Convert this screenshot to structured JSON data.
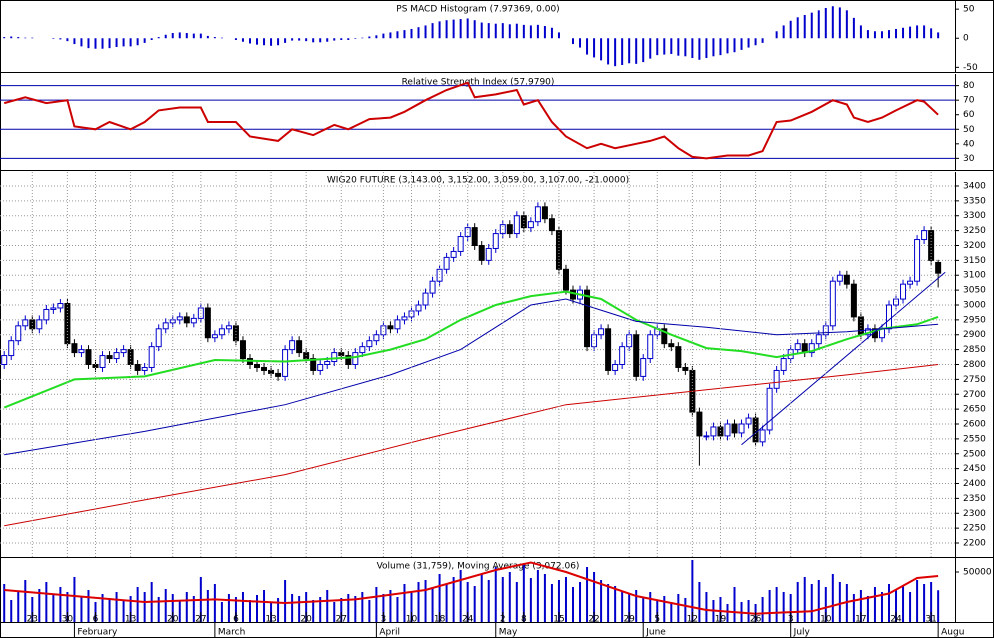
{
  "chart_data": [
    {
      "type": "bar",
      "title": "PS MACD Histogram (7.97369, 0.00)",
      "color": "#0000cc",
      "ylim": [
        -58,
        64
      ],
      "yticks": [
        -50,
        0,
        50
      ],
      "values": [
        2,
        3,
        2,
        1,
        1,
        0,
        0,
        -1,
        -2,
        -5,
        -10,
        -14,
        -17,
        -18,
        -18,
        -17,
        -15,
        -14,
        -14,
        -12,
        -8,
        -3,
        2,
        6,
        9,
        10,
        9,
        8,
        8,
        4,
        2,
        1,
        0,
        -3,
        -6,
        -9,
        -11,
        -12,
        -13,
        -12,
        -8,
        -4,
        -4,
        -5,
        -7,
        -7,
        -6,
        -4,
        -3,
        -3,
        -1,
        1,
        3,
        5,
        8,
        10,
        12,
        14,
        16,
        19,
        22,
        26,
        29,
        31,
        32,
        33,
        34,
        31,
        27,
        26,
        25,
        26,
        24,
        25,
        23,
        22,
        23,
        21,
        18,
        10,
        0,
        -10,
        -16,
        -28,
        -33,
        -38,
        -45,
        -48,
        -46,
        -43,
        -44,
        -41,
        -35,
        -29,
        -28,
        -27,
        -30,
        -31,
        -34,
        -37,
        -34,
        -31,
        -29,
        -26,
        -24,
        -20,
        -16,
        -12,
        -8,
        0,
        12,
        22,
        30,
        36,
        40,
        44,
        48,
        52,
        55,
        53,
        48,
        35,
        22,
        14,
        12,
        12,
        14,
        16,
        18,
        20,
        22,
        22,
        17,
        10
      ]
    },
    {
      "type": "line",
      "title": "Relative Strength Index (57.9790)",
      "color": "#cc0000",
      "level_color": "#0000aa",
      "levels": [
        30,
        50,
        70,
        80
      ],
      "ylim": [
        22,
        88
      ],
      "yticks": [
        30,
        40,
        50,
        60,
        70,
        80
      ],
      "x": [
        0,
        3,
        6,
        9,
        10,
        13,
        15,
        18,
        20,
        22,
        25,
        28,
        29,
        33,
        35,
        39,
        41,
        44,
        47,
        49,
        52,
        55,
        57,
        60,
        63,
        66,
        67,
        70,
        73,
        74,
        76,
        78,
        80,
        83,
        85,
        87,
        90,
        92,
        94,
        96,
        98,
        100,
        103,
        106,
        108,
        110,
        112,
        115,
        118,
        120,
        121,
        123,
        125,
        127,
        130,
        131,
        133
      ],
      "values": [
        68,
        72,
        68,
        70,
        52,
        50,
        55,
        50,
        55,
        63,
        65,
        65,
        55,
        55,
        45,
        42,
        50,
        46,
        53,
        50,
        57,
        58,
        62,
        70,
        77,
        82,
        72,
        74,
        77,
        67,
        70,
        55,
        45,
        37,
        40,
        37,
        40,
        42,
        45,
        37,
        31,
        30,
        32,
        32,
        35,
        55,
        56,
        62,
        70,
        67,
        58,
        55,
        58,
        63,
        70,
        69,
        60
      ]
    },
    {
      "type": "candlestick",
      "title": "WIG20 FUTURE (3,143.00, 3,152.00, 3,059.00, 3,107.00, -21.0000)",
      "up_color": "#0000cc",
      "down_color": "#000000",
      "grid": true,
      "ylim": [
        2153,
        3447
      ],
      "yticks": [
        2200,
        2250,
        2300,
        2350,
        2400,
        2450,
        2500,
        2550,
        2600,
        2650,
        2700,
        2750,
        2800,
        2850,
        2900,
        2950,
        3000,
        3050,
        3100,
        3150,
        3200,
        3250,
        3300,
        3350,
        3400
      ],
      "open": [
        2800,
        2830,
        2880,
        2930,
        2950,
        2920,
        2950,
        2985,
        2990,
        3005,
        2870,
        2840,
        2850,
        2800,
        2790,
        2830,
        2820,
        2840,
        2850,
        2800,
        2780,
        2790,
        2860,
        2920,
        2940,
        2950,
        2960,
        2940,
        2955,
        2990,
        2890,
        2900,
        2920,
        2930,
        2880,
        2820,
        2800,
        2790,
        2780,
        2770,
        2760,
        2850,
        2880,
        2840,
        2820,
        2780,
        2800,
        2810,
        2840,
        2830,
        2800,
        2840,
        2860,
        2880,
        2900,
        2930,
        2920,
        2950,
        2960,
        2980,
        3000,
        3040,
        3080,
        3120,
        3160,
        3180,
        3230,
        3260,
        3200,
        3150,
        3190,
        3240,
        3270,
        3240,
        3300,
        3260,
        3280,
        3330,
        3290,
        3250,
        3120,
        3050,
        3020,
        3050,
        2860,
        2900,
        2920,
        2780,
        2800,
        2860,
        2900,
        2760,
        2820,
        2900,
        2920,
        2870,
        2860,
        2790,
        2780,
        2640,
        2560,
        2560,
        2590,
        2560,
        2600,
        2570,
        2600,
        2620,
        2540,
        2580,
        2720,
        2780,
        2820,
        2850,
        2870,
        2840,
        2870,
        2900,
        2930,
        3080,
        3100,
        3070,
        2960,
        2900,
        2920,
        2890,
        2920,
        3000,
        3020,
        3070,
        3080,
        3220,
        3250,
        3143
      ],
      "high": [
        2845,
        2895,
        2945,
        2965,
        2965,
        2965,
        3000,
        3005,
        3020,
        3020,
        2885,
        2865,
        2865,
        2815,
        2845,
        2845,
        2855,
        2865,
        2865,
        2815,
        2805,
        2875,
        2935,
        2955,
        2965,
        2975,
        2975,
        2970,
        3005,
        3005,
        2915,
        2935,
        2945,
        2945,
        2895,
        2835,
        2815,
        2805,
        2795,
        2785,
        2865,
        2895,
        2895,
        2855,
        2835,
        2815,
        2825,
        2855,
        2855,
        2845,
        2855,
        2875,
        2895,
        2915,
        2945,
        2945,
        2965,
        2975,
        2995,
        3015,
        3055,
        3095,
        3135,
        3175,
        3195,
        3245,
        3275,
        3275,
        3215,
        3205,
        3255,
        3285,
        3285,
        3315,
        3315,
        3295,
        3345,
        3345,
        3305,
        3265,
        3135,
        3065,
        3065,
        3065,
        2915,
        2935,
        2935,
        2815,
        2875,
        2915,
        2915,
        2835,
        2915,
        2935,
        2935,
        2885,
        2875,
        2805,
        2795,
        2655,
        2575,
        2605,
        2605,
        2615,
        2615,
        2615,
        2635,
        2635,
        2595,
        2735,
        2795,
        2835,
        2865,
        2885,
        2885,
        2885,
        2915,
        2945,
        3095,
        3115,
        3115,
        3085,
        2975,
        2935,
        2935,
        2935,
        3015,
        3035,
        3085,
        3095,
        3235,
        3265,
        3265,
        3152
      ],
      "low": [
        2785,
        2815,
        2865,
        2915,
        2905,
        2905,
        2935,
        2970,
        2975,
        2855,
        2825,
        2825,
        2785,
        2775,
        2775,
        2805,
        2805,
        2825,
        2785,
        2765,
        2765,
        2775,
        2845,
        2905,
        2925,
        2935,
        2925,
        2925,
        2940,
        2875,
        2875,
        2885,
        2905,
        2865,
        2805,
        2785,
        2775,
        2765,
        2755,
        2745,
        2745,
        2835,
        2825,
        2805,
        2765,
        2765,
        2785,
        2795,
        2815,
        2785,
        2785,
        2825,
        2845,
        2865,
        2885,
        2905,
        2905,
        2935,
        2945,
        2965,
        2985,
        3025,
        3065,
        3105,
        3145,
        3165,
        3215,
        3185,
        3135,
        3135,
        3175,
        3225,
        3225,
        3225,
        3245,
        3245,
        3265,
        3275,
        3235,
        3105,
        3035,
        3005,
        3005,
        2845,
        2845,
        2885,
        2765,
        2765,
        2785,
        2845,
        2745,
        2745,
        2805,
        2885,
        2855,
        2845,
        2775,
        2765,
        2625,
        2460,
        2545,
        2545,
        2545,
        2545,
        2555,
        2555,
        2585,
        2525,
        2525,
        2565,
        2705,
        2765,
        2805,
        2835,
        2825,
        2825,
        2855,
        2885,
        2915,
        3065,
        3055,
        2945,
        2885,
        2885,
        2875,
        2875,
        2905,
        2985,
        3005,
        3055,
        3065,
        3205,
        3135,
        3059
      ],
      "close": [
        2830,
        2880,
        2930,
        2950,
        2920,
        2950,
        2985,
        2990,
        3005,
        2870,
        2840,
        2850,
        2800,
        2790,
        2830,
        2820,
        2840,
        2850,
        2800,
        2780,
        2790,
        2860,
        2920,
        2940,
        2950,
        2960,
        2940,
        2955,
        2990,
        2890,
        2900,
        2920,
        2930,
        2880,
        2820,
        2800,
        2790,
        2780,
        2770,
        2760,
        2850,
        2880,
        2840,
        2820,
        2780,
        2800,
        2810,
        2840,
        2830,
        2800,
        2840,
        2860,
        2880,
        2900,
        2930,
        2920,
        2950,
        2960,
        2980,
        3000,
        3040,
        3080,
        3120,
        3160,
        3180,
        3230,
        3260,
        3200,
        3150,
        3190,
        3240,
        3270,
        3240,
        3300,
        3260,
        3280,
        3330,
        3290,
        3250,
        3120,
        3050,
        3020,
        3050,
        2860,
        2900,
        2920,
        2780,
        2800,
        2860,
        2900,
        2760,
        2820,
        2900,
        2920,
        2870,
        2860,
        2790,
        2780,
        2640,
        2560,
        2560,
        2590,
        2560,
        2600,
        2570,
        2600,
        2620,
        2540,
        2580,
        2720,
        2780,
        2820,
        2850,
        2870,
        2840,
        2870,
        2900,
        2930,
        3080,
        3100,
        3070,
        2960,
        2900,
        2920,
        2890,
        2920,
        3000,
        3020,
        3070,
        3080,
        3220,
        3250,
        3150,
        3107
      ],
      "lines": [
        {
          "color": "#22dd22",
          "x": [
            0,
            10,
            20,
            30,
            40,
            50,
            55,
            60,
            65,
            70,
            75,
            80,
            85,
            90,
            95,
            100,
            105,
            110,
            115,
            120,
            125,
            130,
            133
          ],
          "values": [
            2655,
            2750,
            2760,
            2815,
            2810,
            2825,
            2850,
            2885,
            2950,
            3000,
            3030,
            3045,
            3020,
            2950,
            2900,
            2855,
            2845,
            2825,
            2845,
            2885,
            2920,
            2935,
            2960
          ]
        },
        {
          "color": "#0000aa",
          "x": [
            0,
            20,
            40,
            55,
            65,
            75,
            80,
            90,
            100,
            110,
            120,
            133
          ],
          "values": [
            2497,
            2575,
            2665,
            2765,
            2850,
            3000,
            3020,
            2945,
            2925,
            2900,
            2910,
            2935
          ]
        },
        {
          "color": "#cc0000",
          "x": [
            0,
            20,
            40,
            60,
            80,
            100,
            120,
            133
          ],
          "values": [
            2258,
            2345,
            2430,
            2550,
            2665,
            2715,
            2765,
            2800
          ]
        },
        {
          "color": "#0000aa",
          "x": [
            105,
            134
          ],
          "values": [
            2530,
            3110
          ]
        }
      ]
    },
    {
      "type": "bar",
      "title": "Volume (31,759), Moving Average (3,072.06)",
      "color": "#0000cc",
      "ylim": [
        0,
        64000
      ],
      "yticks": [
        50000
      ],
      "xlim": [
        -0.6,
        135.4
      ],
      "values": [
        38000,
        22000,
        30000,
        42000,
        25000,
        33000,
        40000,
        28000,
        35000,
        30000,
        45000,
        26000,
        32000,
        20000,
        28000,
        24000,
        30000,
        22000,
        26000,
        35000,
        30000,
        40000,
        25000,
        33000,
        28000,
        22000,
        30000,
        26000,
        45000,
        32000,
        38000,
        20000,
        28000,
        25000,
        30000,
        22000,
        27000,
        32000,
        20000,
        24000,
        42000,
        28000,
        26000,
        30000,
        22000,
        25000,
        32000,
        20000,
        24000,
        28000,
        26000,
        30000,
        22000,
        35000,
        28000,
        32000,
        25000,
        38000,
        30000,
        40000,
        42000,
        35000,
        48000,
        38000,
        45000,
        52000,
        40000,
        36000,
        48000,
        42000,
        55000,
        45000,
        50000,
        40000,
        58000,
        44000,
        52000,
        48000,
        38000,
        42000,
        45000,
        35000,
        40000,
        55000,
        50000,
        42000,
        38000,
        36000,
        30000,
        28000,
        32000,
        25000,
        30000,
        22000,
        26000,
        20000,
        28000,
        24000,
        62000,
        40000,
        30000,
        22000,
        25000,
        18000,
        35000,
        20000,
        22000,
        18000,
        25000,
        32000,
        35000,
        30000,
        28000,
        40000,
        45000,
        38000,
        42000,
        35000,
        48000,
        40000,
        38000,
        28000,
        32000,
        26000,
        35000,
        30000,
        38000,
        32000,
        36000,
        30000,
        42000,
        38000,
        40000,
        31759
      ],
      "line": {
        "color": "#dd0000",
        "x": [
          0,
          10,
          20,
          30,
          40,
          50,
          60,
          70,
          75,
          80,
          90,
          100,
          107,
          115,
          120,
          126,
          130,
          133
        ],
        "values": [
          32000,
          26000,
          20000,
          22600,
          19000,
          22600,
          32000,
          52000,
          59500,
          50000,
          26000,
          12000,
          8300,
          10700,
          20000,
          28500,
          44000,
          46000
        ]
      },
      "xticks": [
        {
          "value": 4,
          "label": "23"
        },
        {
          "value": 9,
          "label": "30"
        },
        {
          "value": 13,
          "label": "6"
        },
        {
          "value": 18,
          "label": "13"
        },
        {
          "value": 24,
          "label": "20"
        },
        {
          "value": 28,
          "label": "27"
        },
        {
          "value": 33,
          "label": "6"
        },
        {
          "value": 38,
          "label": "13"
        },
        {
          "value": 43,
          "label": "20"
        },
        {
          "value": 48,
          "label": "27"
        },
        {
          "value": 54,
          "label": "3"
        },
        {
          "value": 58,
          "label": "10"
        },
        {
          "value": 62,
          "label": "18"
        },
        {
          "value": 66,
          "label": "24"
        },
        {
          "value": 71,
          "label": "2"
        },
        {
          "value": 74,
          "label": "8"
        },
        {
          "value": 79,
          "label": "15"
        },
        {
          "value": 84,
          "label": "22"
        },
        {
          "value": 89,
          "label": "29"
        },
        {
          "value": 93,
          "label": "5"
        },
        {
          "value": 98,
          "label": "12"
        },
        {
          "value": 102,
          "label": "19"
        },
        {
          "value": 107,
          "label": "26"
        },
        {
          "value": 112,
          "label": "3"
        },
        {
          "value": 117,
          "label": "10"
        },
        {
          "value": 122,
          "label": "17"
        },
        {
          "value": 127,
          "label": "24"
        },
        {
          "value": 132,
          "label": "31"
        }
      ],
      "months": [
        {
          "value": 10,
          "label": "February"
        },
        {
          "value": 30,
          "label": "March"
        },
        {
          "value": 53,
          "label": "April"
        },
        {
          "value": 70,
          "label": "May"
        },
        {
          "value": 91,
          "label": "June"
        },
        {
          "value": 112,
          "label": "July"
        },
        {
          "value": 133,
          "label": "Augu"
        }
      ]
    }
  ]
}
